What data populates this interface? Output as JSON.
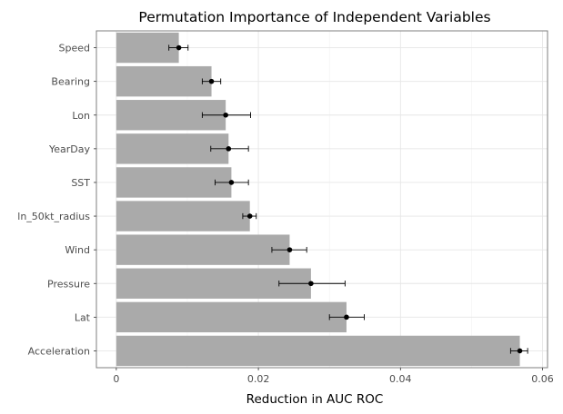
{
  "chart_data": {
    "type": "bar",
    "orientation": "horizontal",
    "title": "Permutation Importance of Independent Variables",
    "xlabel": "Reduction in AUC ROC",
    "ylabel": "",
    "xlim": [
      -0.0028,
      0.0607
    ],
    "xticks": [
      0,
      0.02,
      0.04,
      0.06
    ],
    "xtick_labels": [
      "0",
      "0.02",
      "0.04",
      "0.06"
    ],
    "grid": true,
    "bar_color": "#aaaaaa",
    "point_color": "#000000",
    "categories": [
      "Speed",
      "Bearing",
      "Lon",
      "YearDay",
      "SST",
      "ln_50kt_radius",
      "Wind",
      "Pressure",
      "Lat",
      "Acceleration"
    ],
    "values": [
      0.0088,
      0.0134,
      0.0154,
      0.0158,
      0.0162,
      0.0188,
      0.0244,
      0.0274,
      0.0324,
      0.0568
    ],
    "error_low": [
      0.0074,
      0.0121,
      0.0121,
      0.0133,
      0.0139,
      0.0178,
      0.0219,
      0.0229,
      0.03,
      0.0555
    ],
    "error_high": [
      0.0101,
      0.0147,
      0.0189,
      0.0186,
      0.0186,
      0.0197,
      0.0268,
      0.0322,
      0.0349,
      0.0579
    ]
  }
}
